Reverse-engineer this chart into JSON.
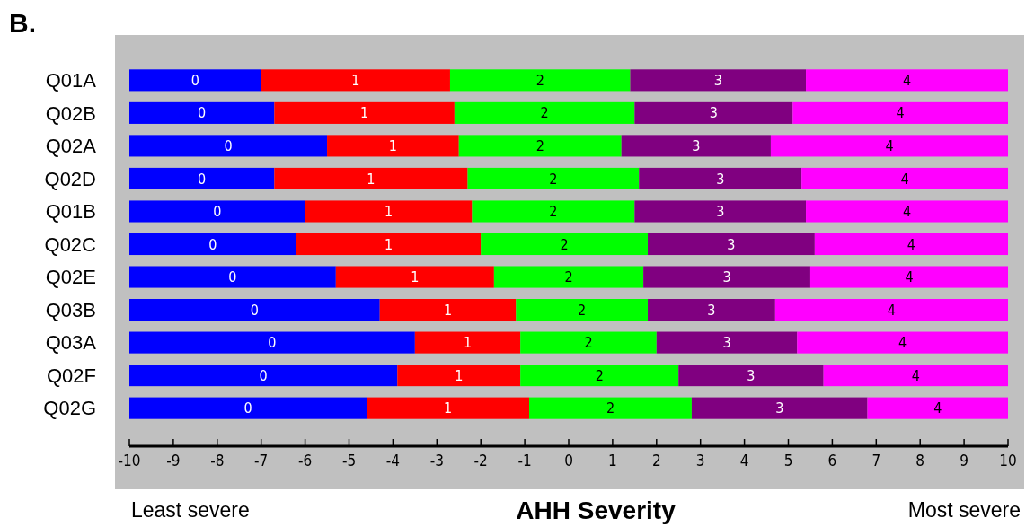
{
  "chart_data": {
    "type": "bar",
    "orientation": "horizontal",
    "title": "B.",
    "xlabel": "AHH Severity",
    "annotations": [
      "Least severe",
      "Most severe"
    ],
    "categories": [
      "Q01A",
      "Q02B",
      "Q02A",
      "Q02D",
      "Q01B",
      "Q02C",
      "Q02E",
      "Q03B",
      "Q03A",
      "Q02F",
      "Q02G"
    ],
    "xlim": [
      -10,
      10
    ],
    "xticks": [
      -10,
      -9,
      -8,
      -7,
      -6,
      -5,
      -4,
      -3,
      -2,
      -1,
      0,
      1,
      2,
      3,
      4,
      5,
      6,
      7,
      8,
      9,
      10
    ],
    "series": [
      {
        "name": "0",
        "color": "#0000ff",
        "base": [
          -10,
          -10,
          -10,
          -10,
          -10,
          -10,
          -10,
          -10,
          -10,
          -10,
          -10
        ],
        "values": [
          3.0,
          3.3,
          4.5,
          3.3,
          4.0,
          3.8,
          4.7,
          5.7,
          6.5,
          6.1,
          5.4
        ]
      },
      {
        "name": "1",
        "color": "#ff0000",
        "base": [
          -7.0,
          -6.7,
          -5.5,
          -6.7,
          -6.0,
          -6.2,
          -5.3,
          -4.3,
          -3.5,
          -3.9,
          -4.6
        ],
        "values": [
          4.3,
          4.1,
          3.0,
          4.4,
          3.8,
          4.2,
          3.6,
          3.1,
          2.4,
          2.8,
          3.7
        ]
      },
      {
        "name": "2",
        "color": "#00ff00",
        "base": [
          -2.7,
          -2.6,
          -2.5,
          -2.3,
          -2.2,
          -2.0,
          -1.7,
          -1.2,
          -1.1,
          -1.1,
          -0.9
        ],
        "values": [
          4.1,
          4.1,
          3.7,
          3.9,
          3.7,
          3.8,
          3.4,
          3.0,
          3.1,
          3.6,
          3.7
        ]
      },
      {
        "name": "3",
        "color": "#800080",
        "base": [
          1.4,
          1.5,
          1.2,
          1.6,
          1.5,
          1.8,
          1.7,
          1.8,
          2.0,
          2.5,
          2.8
        ],
        "values": [
          4.0,
          3.6,
          3.4,
          3.7,
          3.9,
          3.8,
          3.8,
          2.9,
          3.2,
          3.3,
          4.0
        ]
      },
      {
        "name": "4",
        "color": "#ff00ff",
        "base": [
          5.4,
          5.1,
          4.6,
          5.3,
          5.4,
          5.6,
          5.5,
          4.7,
          5.2,
          5.8,
          6.8
        ],
        "values": [
          4.6,
          4.9,
          5.4,
          4.7,
          4.6,
          4.4,
          4.5,
          5.3,
          4.8,
          4.2,
          3.2
        ]
      }
    ]
  }
}
